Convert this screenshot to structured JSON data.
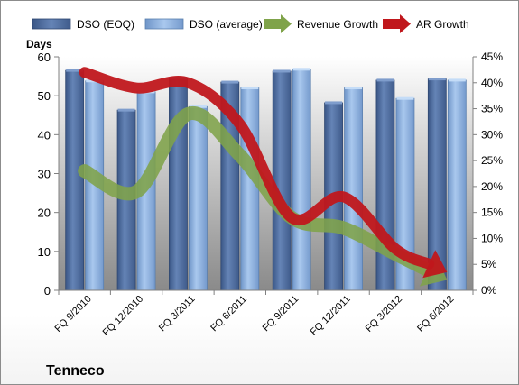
{
  "chart_data": {
    "type": "bar",
    "company": "Tenneco",
    "categories": [
      "FQ 9/2010",
      "FQ 12/2010",
      "FQ 3/2011",
      "FQ 6/2011",
      "FQ 9/2011",
      "FQ 12/2011",
      "FQ 3/2012",
      "FQ 6/2012"
    ],
    "series": [
      {
        "name": "DSO (EOQ)",
        "kind": "bar",
        "axis": "left",
        "values": [
          56.5,
          46.3,
          54.5,
          53.5,
          56.3,
          48.2,
          54.0,
          54.3
        ]
      },
      {
        "name": "DSO (average)",
        "kind": "bar",
        "axis": "left",
        "values": [
          53.8,
          51.0,
          47.2,
          52.0,
          56.8,
          52.0,
          49.3,
          54.0
        ]
      },
      {
        "name": "Revenue Growth",
        "kind": "line-arrow",
        "axis": "right",
        "values": [
          0.23,
          0.19,
          0.34,
          0.26,
          0.14,
          0.12,
          0.07,
          0.02
        ]
      },
      {
        "name": "AR Growth",
        "kind": "line-arrow",
        "axis": "right",
        "values": [
          0.42,
          0.39,
          0.4,
          0.32,
          0.14,
          0.18,
          0.08,
          0.035
        ]
      }
    ],
    "ylabel": "Days",
    "ylim": [
      0,
      60
    ],
    "yticks": [
      0,
      10,
      20,
      30,
      40,
      50,
      60
    ],
    "y2lim": [
      0,
      0.45
    ],
    "y2ticks": [
      "0%",
      "5%",
      "10%",
      "15%",
      "20%",
      "25%",
      "30%",
      "35%",
      "40%",
      "45%"
    ],
    "legend_position": "top",
    "grid": false,
    "colors": {
      "dso_eoq": "#4f6d9e",
      "dso_avg": "#8fb4e3",
      "revenue_growth": "#7fa34a",
      "ar_growth": "#c0171c",
      "plot_top": "#ffffff",
      "plot_bottom": "#8a8a8a"
    }
  }
}
